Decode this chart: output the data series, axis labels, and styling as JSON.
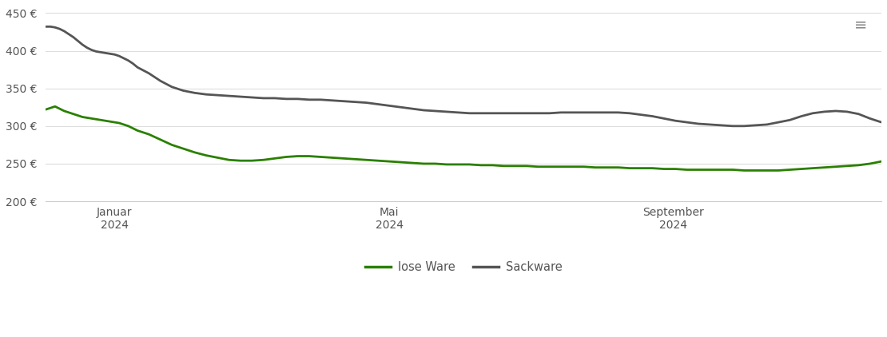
{
  "background_color": "#ffffff",
  "plot_bg_color": "#ffffff",
  "grid_color": "#dddddd",
  "line_lose_ware_color": "#2a8000",
  "line_sackware_color": "#555555",
  "legend_labels": [
    "lose Ware",
    "Sackware"
  ],
  "ylim": [
    200,
    460
  ],
  "yticks": [
    200,
    250,
    300,
    350,
    400,
    450
  ],
  "ytick_labels": [
    "200 €",
    "250 €",
    "300 €",
    "350 €",
    "400 €",
    "450 €"
  ],
  "xlim": [
    0,
    365
  ],
  "xtick_positions": [
    30,
    150,
    274
  ],
  "xtick_labels": [
    "Januar\n2024",
    "Mai\n2024",
    "September\n2024"
  ],
  "lose_ware_x": [
    0,
    2,
    4,
    6,
    8,
    10,
    12,
    14,
    16,
    18,
    20,
    22,
    24,
    26,
    28,
    30,
    32,
    34,
    36,
    38,
    40,
    45,
    50,
    55,
    60,
    65,
    70,
    75,
    80,
    85,
    90,
    95,
    100,
    105,
    110,
    115,
    120,
    125,
    130,
    135,
    140,
    145,
    150,
    155,
    160,
    165,
    170,
    175,
    180,
    185,
    190,
    195,
    200,
    205,
    210,
    215,
    220,
    225,
    230,
    235,
    240,
    245,
    250,
    255,
    260,
    265,
    270,
    275,
    280,
    285,
    290,
    295,
    300,
    305,
    310,
    315,
    320,
    325,
    330,
    335,
    340,
    345,
    350,
    355,
    360,
    365
  ],
  "lose_ware_y": [
    322,
    324,
    326,
    323,
    320,
    318,
    316,
    314,
    312,
    311,
    310,
    309,
    308,
    307,
    306,
    305,
    304,
    302,
    300,
    297,
    294,
    289,
    282,
    275,
    270,
    265,
    261,
    258,
    255,
    254,
    254,
    255,
    257,
    259,
    260,
    260,
    259,
    258,
    257,
    256,
    255,
    254,
    253,
    252,
    251,
    250,
    250,
    249,
    249,
    249,
    248,
    248,
    247,
    247,
    247,
    246,
    246,
    246,
    246,
    246,
    245,
    245,
    245,
    244,
    244,
    244,
    243,
    243,
    242,
    242,
    242,
    242,
    242,
    241,
    241,
    241,
    241,
    242,
    243,
    244,
    245,
    246,
    247,
    248,
    250,
    253
  ],
  "sackware_x": [
    0,
    2,
    4,
    6,
    8,
    10,
    12,
    14,
    16,
    18,
    20,
    22,
    24,
    26,
    28,
    30,
    32,
    34,
    36,
    38,
    40,
    45,
    50,
    55,
    60,
    65,
    70,
    75,
    80,
    85,
    90,
    95,
    100,
    105,
    110,
    115,
    120,
    125,
    130,
    135,
    140,
    145,
    150,
    155,
    160,
    165,
    170,
    175,
    180,
    185,
    190,
    195,
    200,
    205,
    210,
    215,
    220,
    225,
    230,
    235,
    240,
    245,
    250,
    255,
    260,
    265,
    270,
    275,
    280,
    285,
    290,
    295,
    300,
    305,
    310,
    315,
    320,
    325,
    330,
    335,
    340,
    345,
    350,
    355,
    360,
    365
  ],
  "sackware_y": [
    432,
    432,
    431,
    429,
    426,
    422,
    418,
    413,
    408,
    404,
    401,
    399,
    398,
    397,
    396,
    395,
    393,
    390,
    387,
    383,
    378,
    370,
    360,
    352,
    347,
    344,
    342,
    341,
    340,
    339,
    338,
    337,
    337,
    336,
    336,
    335,
    335,
    334,
    333,
    332,
    331,
    329,
    327,
    325,
    323,
    321,
    320,
    319,
    318,
    317,
    317,
    317,
    317,
    317,
    317,
    317,
    317,
    318,
    318,
    318,
    318,
    318,
    318,
    317,
    315,
    313,
    310,
    307,
    305,
    303,
    302,
    301,
    300,
    300,
    301,
    302,
    305,
    308,
    313,
    317,
    319,
    320,
    319,
    316,
    310,
    305
  ]
}
